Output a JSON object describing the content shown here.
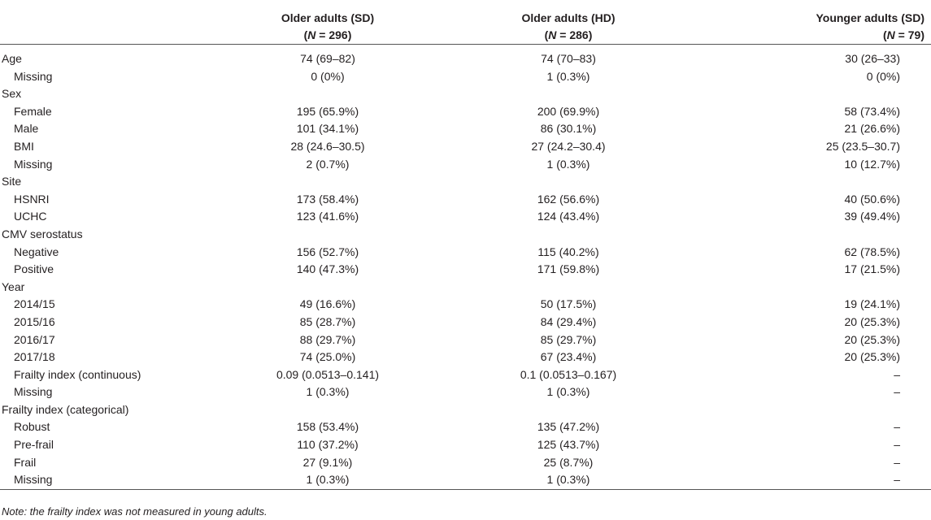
{
  "header": {
    "columns": [
      {
        "name": "Older adults (SD)",
        "n_prefix": "(",
        "n_symbol": "N",
        "n_rest": " = 296)"
      },
      {
        "name": "Older adults (HD)",
        "n_prefix": "(",
        "n_symbol": "N",
        "n_rest": " = 286)"
      },
      {
        "name": "Younger adults (SD)",
        "n_prefix": "(",
        "n_symbol": "N",
        "n_rest": " = 79)"
      }
    ]
  },
  "rows": [
    {
      "label": "Age",
      "indent": false,
      "values": [
        "74 (69–82)",
        "74 (70–83)",
        "30 (26–33)"
      ]
    },
    {
      "label": "Missing",
      "indent": true,
      "values": [
        "0 (0%)",
        "1 (0.3%)",
        "0 (0%)"
      ]
    },
    {
      "label": "Sex",
      "indent": false,
      "values": [
        "",
        "",
        ""
      ]
    },
    {
      "label": "Female",
      "indent": true,
      "values": [
        "195 (65.9%)",
        "200 (69.9%)",
        "58 (73.4%)"
      ]
    },
    {
      "label": "Male",
      "indent": true,
      "values": [
        "101 (34.1%)",
        "86 (30.1%)",
        "21 (26.6%)"
      ]
    },
    {
      "label": "BMI",
      "indent": true,
      "values": [
        "28 (24.6–30.5)",
        "27 (24.2–30.4)",
        "25 (23.5–30.7)"
      ]
    },
    {
      "label": "Missing",
      "indent": true,
      "values": [
        "2 (0.7%)",
        "1 (0.3%)",
        "10 (12.7%)"
      ]
    },
    {
      "label": "Site",
      "indent": false,
      "values": [
        "",
        "",
        ""
      ]
    },
    {
      "label": "HSNRI",
      "indent": true,
      "values": [
        "173 (58.4%)",
        "162 (56.6%)",
        "40 (50.6%)"
      ]
    },
    {
      "label": "UCHC",
      "indent": true,
      "values": [
        "123 (41.6%)",
        "124 (43.4%)",
        "39 (49.4%)"
      ]
    },
    {
      "label": "CMV serostatus",
      "indent": false,
      "values": [
        "",
        "",
        ""
      ]
    },
    {
      "label": "Negative",
      "indent": true,
      "values": [
        "156 (52.7%)",
        "115 (40.2%)",
        "62 (78.5%)"
      ]
    },
    {
      "label": "Positive",
      "indent": true,
      "values": [
        "140 (47.3%)",
        "171 (59.8%)",
        "17 (21.5%)"
      ]
    },
    {
      "label": "Year",
      "indent": false,
      "values": [
        "",
        "",
        ""
      ]
    },
    {
      "label": "2014/15",
      "indent": true,
      "values": [
        "49 (16.6%)",
        "50 (17.5%)",
        "19 (24.1%)"
      ]
    },
    {
      "label": "2015/16",
      "indent": true,
      "values": [
        "85 (28.7%)",
        "84 (29.4%)",
        "20 (25.3%)"
      ]
    },
    {
      "label": "2016/17",
      "indent": true,
      "values": [
        "88 (29.7%)",
        "85 (29.7%)",
        "20 (25.3%)"
      ]
    },
    {
      "label": "2017/18",
      "indent": true,
      "values": [
        "74 (25.0%)",
        "67 (23.4%)",
        "20 (25.3%)"
      ]
    },
    {
      "label": "Frailty index (continuous)",
      "indent": true,
      "values": [
        "0.09 (0.0513–0.141)",
        "0.1 (0.0513–0.167)",
        "–"
      ]
    },
    {
      "label": "Missing",
      "indent": true,
      "values": [
        "1 (0.3%)",
        "1 (0.3%)",
        "–"
      ]
    },
    {
      "label": "Frailty index (categorical)",
      "indent": false,
      "values": [
        "",
        "",
        ""
      ]
    },
    {
      "label": "Robust",
      "indent": true,
      "values": [
        "158 (53.4%)",
        "135 (47.2%)",
        "–"
      ]
    },
    {
      "label": "Pre-frail",
      "indent": true,
      "values": [
        "110 (37.2%)",
        "125 (43.7%)",
        "–"
      ]
    },
    {
      "label": "Frail",
      "indent": true,
      "values": [
        "27 (9.1%)",
        "25 (8.7%)",
        "–"
      ]
    },
    {
      "label": "Missing",
      "indent": true,
      "values": [
        "1 (0.3%)",
        "1 (0.3%)",
        "–"
      ]
    }
  ],
  "note": "Note: the frailty index was not measured in young adults."
}
